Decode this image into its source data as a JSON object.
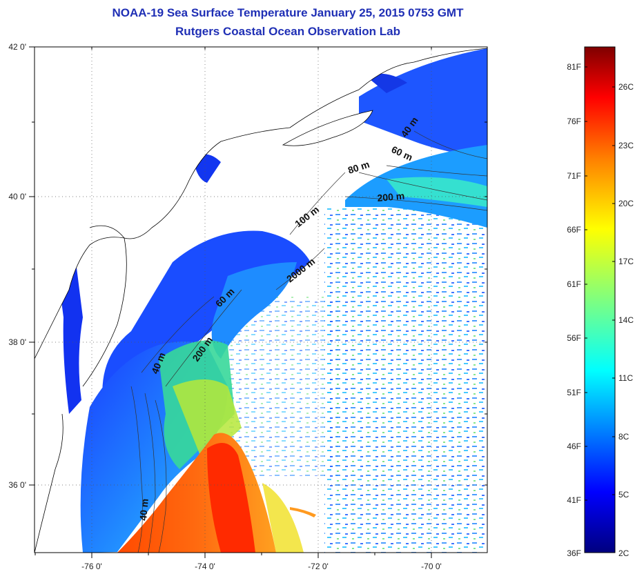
{
  "header": {
    "title": "NOAA-19 Sea Surface Temperature January 25, 2015 0753 GMT",
    "subtitle": "Rutgers Coastal Ocean Observation Lab"
  },
  "map": {
    "lat_labels": [
      "42 0'",
      "40 0'",
      "38 0'",
      "36 0'"
    ],
    "lon_labels": [
      "-76 0'",
      "-74 0'",
      "-72 0'",
      "-70 0'"
    ],
    "contour_labels": [
      "40 m",
      "60 m",
      "80 m",
      "200 m",
      "100 m",
      "2000 m",
      "60 m",
      "200 m",
      "40 m",
      "40 m"
    ],
    "land_color": "#ffffff",
    "coast_color": "#000000"
  },
  "colorbar": {
    "fahrenheit_labels": [
      "81F",
      "76F",
      "71F",
      "66F",
      "61F",
      "56F",
      "51F",
      "46F",
      "41F",
      "36F"
    ],
    "celsius_labels": [
      "26C",
      "23C",
      "20C",
      "17C",
      "14C",
      "11C",
      "8C",
      "5C",
      "2C"
    ],
    "colormap": [
      "#00007f",
      "#0000ff",
      "#007fff",
      "#00ffff",
      "#7fff7f",
      "#ffff00",
      "#ff7f00",
      "#ff0000",
      "#7f0000"
    ]
  }
}
